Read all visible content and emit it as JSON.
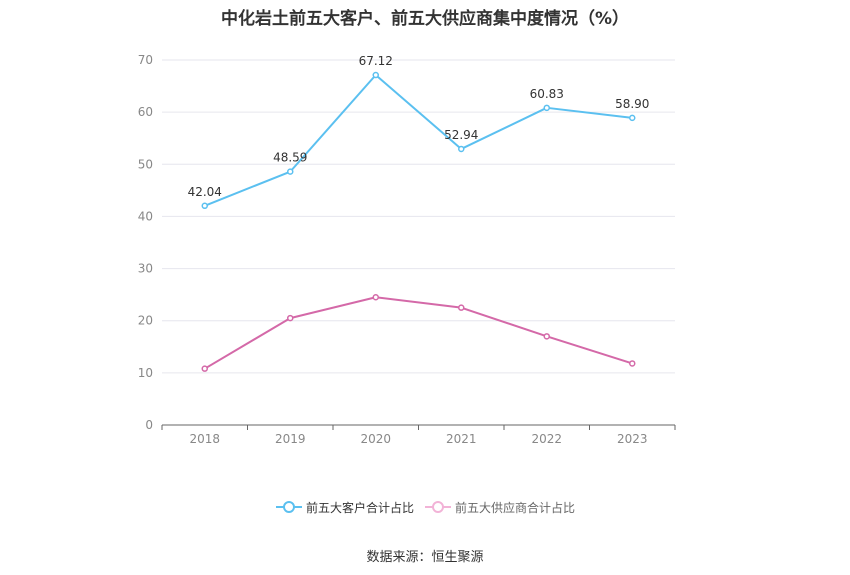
{
  "title": "中化岩土前五大客户、前五大供应商集中度情况（%）",
  "source": "数据来源：恒生聚源",
  "colors": {
    "customers": "#5bc0f0",
    "suppliers": "#d469a8",
    "grid": "#e6e6ee",
    "axis": "#666666"
  },
  "chart_data": {
    "type": "line",
    "title": "中化岩土前五大客户、前五大供应商集中度情况（%）",
    "categories": [
      "2018",
      "2019",
      "2020",
      "2021",
      "2022",
      "2023"
    ],
    "ylim": [
      0,
      70
    ],
    "yticks": [
      0,
      10,
      20,
      30,
      40,
      50,
      60,
      70
    ],
    "grid": true,
    "legend_position": "bottom",
    "series": [
      {
        "name": "前五大客户合计占比",
        "values": [
          42.04,
          48.59,
          67.12,
          52.94,
          60.83,
          58.9
        ],
        "labels": [
          "42.04",
          "48.59",
          "67.12",
          "52.94",
          "60.83",
          "58.90"
        ],
        "color": "#5bc0f0"
      },
      {
        "name": "前五大供应商合计占比",
        "values": [
          10.8,
          20.5,
          24.5,
          22.5,
          17.0,
          11.8
        ],
        "color": "#d469a8"
      }
    ]
  }
}
